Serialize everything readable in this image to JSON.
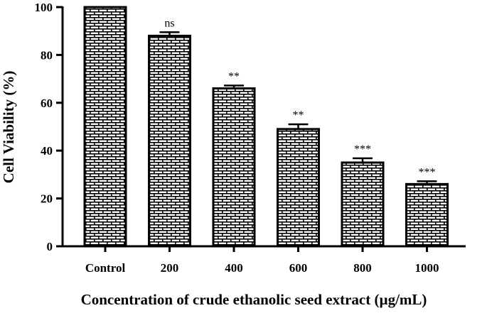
{
  "chart_data": {
    "type": "bar",
    "title": "",
    "xlabel": "Concentration of  crude ethanolic seed extract (µg/mL)",
    "ylabel": "Cell Viability (%)",
    "categories": [
      "Control",
      "200",
      "400",
      "600",
      "800",
      "1000"
    ],
    "values": [
      100,
      88,
      66,
      49,
      35,
      26
    ],
    "errors": [
      0,
      1.5,
      1.2,
      2.0,
      1.8,
      1.2
    ],
    "significance": [
      "",
      "ns",
      "**",
      "**",
      "***",
      "***"
    ],
    "ylim": [
      0,
      100
    ],
    "yticks": [
      "0",
      "20",
      "40",
      "60",
      "80",
      "100"
    ],
    "grid": false,
    "legend": "none",
    "bar_pattern": "brick",
    "bar_color": "#000000"
  }
}
